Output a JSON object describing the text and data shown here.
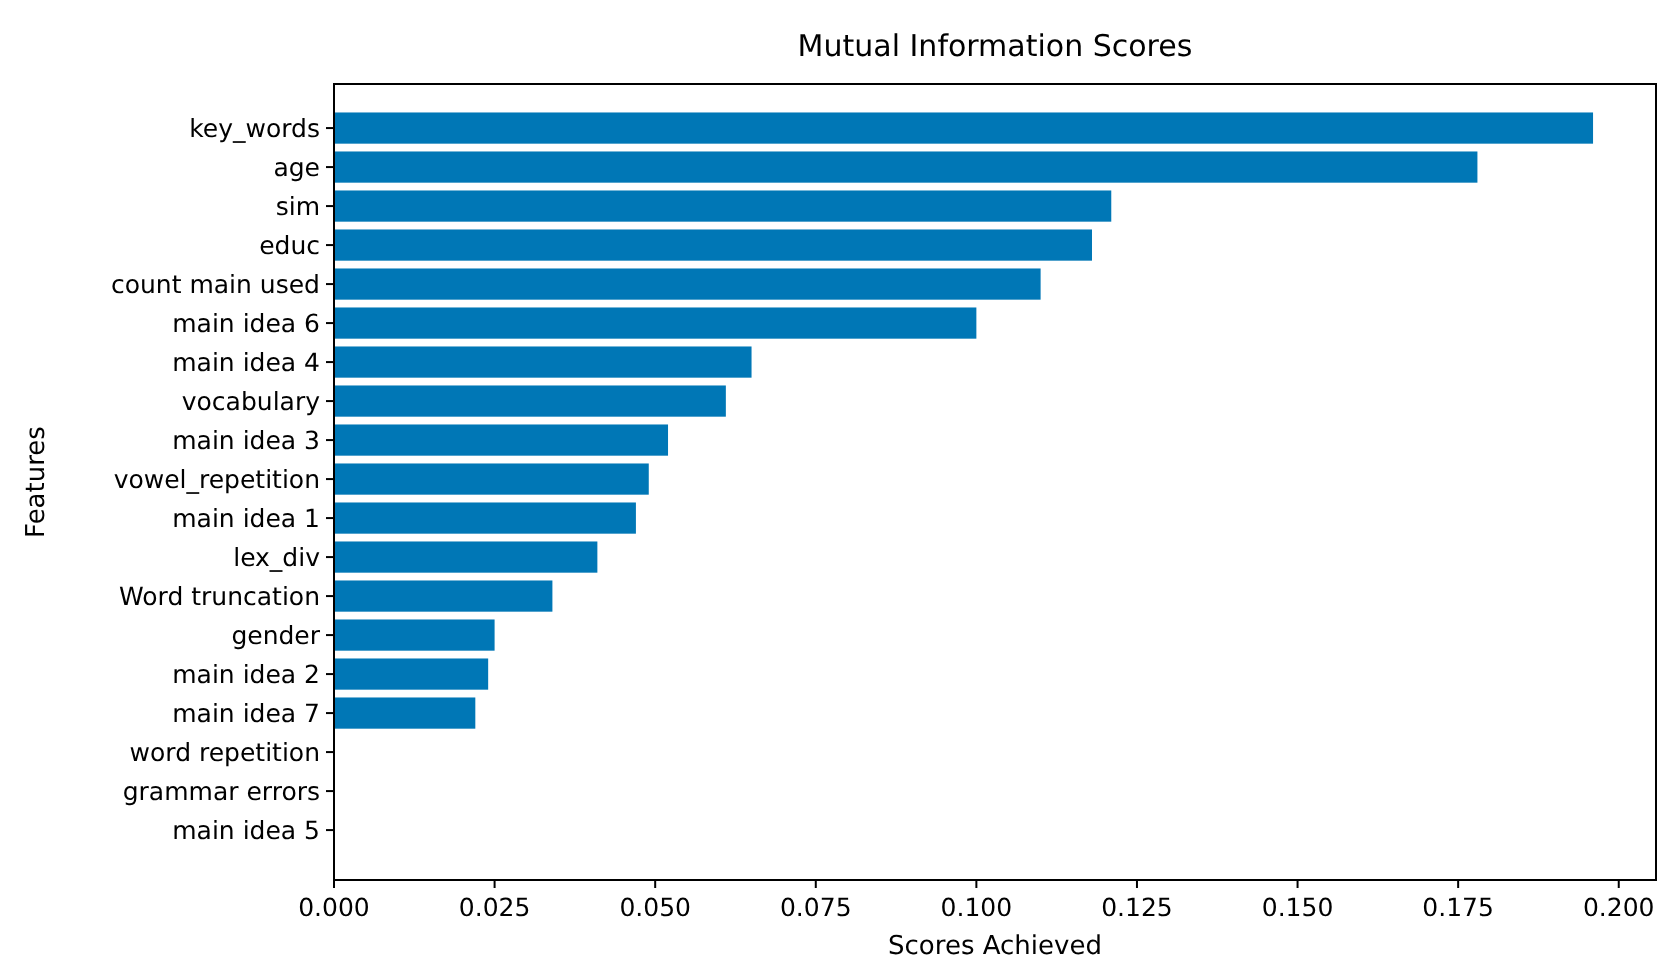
{
  "chart_data": {
    "type": "bar",
    "orientation": "horizontal",
    "title": "Mutual Information Scores",
    "xlabel": "Scores Achieved",
    "ylabel": "Features",
    "categories": [
      "key_words",
      "age",
      "sim",
      "educ",
      "count main used",
      "main idea 6",
      "main idea 4",
      "vocabulary",
      "main idea 3",
      "vowel_repetition",
      "main idea 1",
      "lex_div",
      "Word truncation",
      "gender",
      "main idea 2",
      "main idea 7",
      "word repetition",
      "grammar errors",
      "main idea 5"
    ],
    "values": [
      0.196,
      0.178,
      0.121,
      0.118,
      0.11,
      0.1,
      0.065,
      0.061,
      0.052,
      0.049,
      0.047,
      0.041,
      0.034,
      0.025,
      0.024,
      0.022,
      0,
      0,
      0
    ],
    "color": "#0077b6",
    "xlim": [
      0,
      0.2058
    ],
    "xticks": [
      {
        "value": 0,
        "label": "0.000"
      },
      {
        "value": 0.025,
        "label": "0.025"
      },
      {
        "value": 0.05,
        "label": "0.050"
      },
      {
        "value": 0.075,
        "label": "0.075"
      },
      {
        "value": 0.1,
        "label": "0.100"
      },
      {
        "value": 0.125,
        "label": "0.125"
      },
      {
        "value": 0.15,
        "label": "0.150"
      },
      {
        "value": 0.175,
        "label": "0.175"
      },
      {
        "value": 0.2,
        "label": "0.200"
      }
    ],
    "grid": false
  }
}
